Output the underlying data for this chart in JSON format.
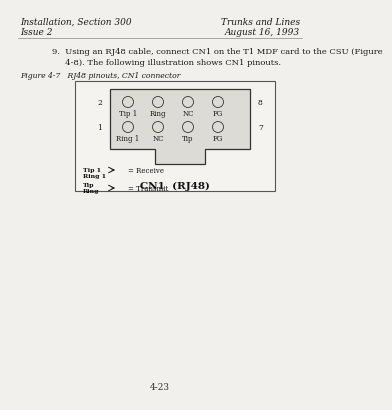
{
  "bg_color": "#f2f0ed",
  "header_left_line1": "Installation, Section 300",
  "header_left_line2": "Issue 2",
  "header_right_line1": "Trunks and Lines",
  "header_right_line2": "August 16, 1993",
  "body_text_line1": "9.  Using an RJ48 cable, connect CN1 on the T1 MDF card to the CSU (Figure",
  "body_text_line2": "     4-8). The following illustration shows CN1 pinouts.",
  "figure_caption": "Figure 4-7   RJ48 pinouts, CN1 connector",
  "connector_label": "CN1  (RJ48)",
  "page_number": "4-23",
  "pin_row2_labels": [
    "Tip 1",
    "Ring",
    "NC",
    "FG"
  ],
  "pin_row1_labels": [
    "Ring 1",
    "NC",
    "Tip",
    "FG"
  ],
  "pin_row2_num_left": "2",
  "pin_row2_num_right": "8",
  "pin_row1_num_left": "1",
  "pin_row1_num_right": "7",
  "legend1_top": "Tip 1",
  "legend1_bot": "Ring 1",
  "legend1_arrow": "= Receive",
  "legend2_top": "Tip",
  "legend2_bot": "Ring",
  "legend2_arrow": "= Transmit"
}
